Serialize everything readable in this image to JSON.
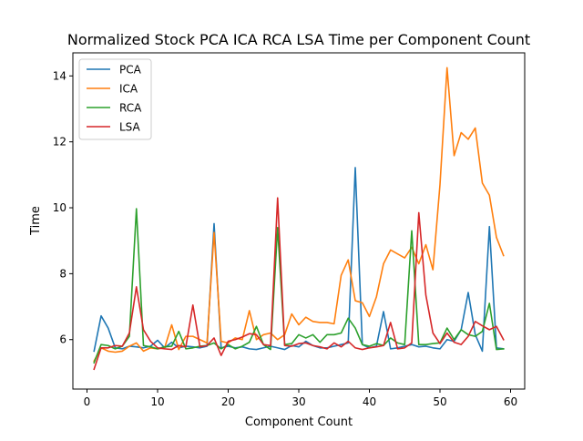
{
  "chart_data": {
    "type": "line",
    "title": "Normalized Stock PCA ICA RCA LSA Time per Component Count",
    "xlabel": "Component Count",
    "ylabel": "Time",
    "xlim": [
      -2,
      62
    ],
    "ylim": [
      4.5,
      14.7
    ],
    "x_ticks": [
      0,
      10,
      20,
      30,
      40,
      50,
      60
    ],
    "y_ticks": [
      6,
      8,
      10,
      12,
      14
    ],
    "grid": false,
    "legend": "top-left",
    "x": [
      1,
      2,
      3,
      4,
      5,
      6,
      7,
      8,
      9,
      10,
      11,
      12,
      13,
      14,
      15,
      16,
      17,
      18,
      19,
      20,
      21,
      22,
      23,
      24,
      25,
      26,
      27,
      28,
      29,
      30,
      31,
      32,
      33,
      34,
      35,
      36,
      37,
      38,
      39,
      40,
      41,
      42,
      43,
      44,
      45,
      46,
      47,
      48,
      49,
      50,
      51,
      52,
      53,
      54,
      55,
      56,
      57,
      58,
      59
    ],
    "series": [
      {
        "name": "PCA",
        "color": "#1f77b4",
        "values": [
          5.65,
          6.72,
          6.35,
          5.75,
          5.72,
          5.8,
          5.78,
          5.75,
          5.8,
          5.98,
          5.75,
          5.92,
          5.75,
          5.8,
          5.78,
          5.75,
          5.8,
          9.52,
          5.75,
          5.8,
          5.75,
          5.78,
          5.72,
          5.7,
          5.75,
          5.8,
          5.75,
          5.7,
          5.82,
          5.78,
          5.95,
          5.82,
          5.75,
          5.75,
          5.8,
          5.85,
          5.9,
          11.22,
          5.85,
          5.75,
          5.8,
          6.85,
          5.72,
          5.75,
          5.8,
          5.85,
          5.78,
          5.8,
          5.75,
          5.72,
          6.0,
          5.95,
          6.3,
          7.43,
          6.15,
          5.65,
          9.43,
          5.75,
          5.72
        ]
      },
      {
        "name": "ICA",
        "color": "#ff7f0e",
        "values": [
          5.35,
          5.75,
          5.65,
          5.62,
          5.65,
          5.8,
          5.9,
          5.65,
          5.75,
          5.72,
          5.75,
          6.45,
          5.7,
          6.1,
          6.1,
          6.0,
          5.9,
          9.25,
          5.95,
          5.9,
          6.05,
          6.0,
          6.88,
          6.0,
          6.15,
          6.2,
          6.0,
          6.15,
          6.78,
          6.45,
          6.68,
          6.55,
          6.52,
          6.52,
          6.48,
          7.95,
          8.42,
          7.18,
          7.12,
          6.7,
          7.3,
          8.3,
          8.72,
          8.6,
          8.48,
          8.8,
          8.3,
          8.88,
          8.12,
          10.7,
          14.25,
          11.58,
          12.28,
          12.08,
          12.42,
          10.75,
          10.38,
          9.1,
          8.55
        ]
      },
      {
        "name": "RCA",
        "color": "#2ca02c",
        "values": [
          5.3,
          5.85,
          5.82,
          5.72,
          5.8,
          6.1,
          9.97,
          5.82,
          5.78,
          5.72,
          5.78,
          5.8,
          6.25,
          5.72,
          5.75,
          5.8,
          5.82,
          5.9,
          5.72,
          5.85,
          5.72,
          5.8,
          5.92,
          6.4,
          5.85,
          5.7,
          9.4,
          5.85,
          5.88,
          6.15,
          6.05,
          6.15,
          5.92,
          6.15,
          6.15,
          6.2,
          6.65,
          6.35,
          5.85,
          5.8,
          5.88,
          5.82,
          6.05,
          5.9,
          5.85,
          9.3,
          5.85,
          5.85,
          5.88,
          5.9,
          6.35,
          6.0,
          6.3,
          6.15,
          6.1,
          6.25,
          7.1,
          5.7,
          5.72
        ]
      },
      {
        "name": "LSA",
        "color": "#d62728",
        "values": [
          5.1,
          5.75,
          5.75,
          5.82,
          5.8,
          6.2,
          7.6,
          6.3,
          5.95,
          5.75,
          5.72,
          5.7,
          5.82,
          5.78,
          7.05,
          5.78,
          5.82,
          6.05,
          5.52,
          5.95,
          6.0,
          6.08,
          6.18,
          6.15,
          5.85,
          5.82,
          10.3,
          5.82,
          5.8,
          5.88,
          5.9,
          5.82,
          5.78,
          5.72,
          5.9,
          5.78,
          5.95,
          5.75,
          5.7,
          5.75,
          5.78,
          5.82,
          6.52,
          5.72,
          5.75,
          5.9,
          9.85,
          7.35,
          6.2,
          5.88,
          6.2,
          5.92,
          5.85,
          6.1,
          6.55,
          6.42,
          6.3,
          6.4,
          6.0
        ]
      }
    ]
  }
}
